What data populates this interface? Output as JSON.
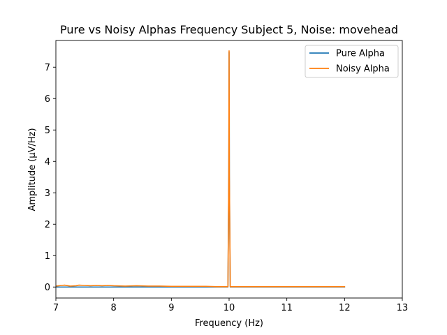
{
  "chart_data": {
    "type": "line",
    "title": "Pure vs Noisy Alphas Frequency Subject 5, Noise: movehead",
    "xlabel": "Frequency (Hz)",
    "ylabel": "Amplitude (μV/Hz)",
    "xlim": [
      7,
      13
    ],
    "ylim": [
      -0.35,
      7.85
    ],
    "xticks": [
      7,
      8,
      9,
      10,
      11,
      12,
      13
    ],
    "xtick_labels": [
      "7",
      "8",
      "9",
      "10",
      "11",
      "12",
      "13"
    ],
    "yticks": [
      0,
      1,
      2,
      3,
      4,
      5,
      6,
      7
    ],
    "ytick_labels": [
      "0",
      "1",
      "2",
      "3",
      "4",
      "5",
      "6",
      "7"
    ],
    "grid": false,
    "legend_position": "upper-right",
    "series": [
      {
        "name": "Pure Alpha",
        "color": "#1f77b4",
        "x": [
          7.0,
          7.5,
          8.0,
          8.5,
          9.0,
          9.5,
          9.95,
          9.98,
          9.995,
          10.0,
          10.005,
          10.02,
          10.05,
          10.5,
          11.0,
          11.5,
          12.0
        ],
        "y": [
          0.0,
          0.0,
          0.0,
          0.0,
          0.0,
          0.0,
          0.0,
          0.0,
          3.5,
          7.48,
          3.5,
          0.0,
          0.0,
          0.0,
          0.0,
          0.0,
          0.0
        ]
      },
      {
        "name": "Noisy Alpha",
        "color": "#ff7f0e",
        "x": [
          7.0,
          7.1,
          7.15,
          7.25,
          7.35,
          7.4,
          7.5,
          7.6,
          7.7,
          7.8,
          7.9,
          8.0,
          8.2,
          8.4,
          8.6,
          8.8,
          9.0,
          9.2,
          9.4,
          9.6,
          9.8,
          9.95,
          9.98,
          9.995,
          10.0,
          10.005,
          10.02,
          10.05,
          10.3,
          10.6,
          11.0,
          11.4,
          11.8,
          12.0
        ],
        "y": [
          0.03,
          0.05,
          0.06,
          0.03,
          0.04,
          0.06,
          0.05,
          0.04,
          0.05,
          0.04,
          0.05,
          0.04,
          0.03,
          0.04,
          0.03,
          0.03,
          0.02,
          0.02,
          0.02,
          0.02,
          0.01,
          0.01,
          0.01,
          3.6,
          7.52,
          3.6,
          0.01,
          0.01,
          0.01,
          0.01,
          0.01,
          0.01,
          0.01,
          0.01
        ]
      }
    ]
  }
}
